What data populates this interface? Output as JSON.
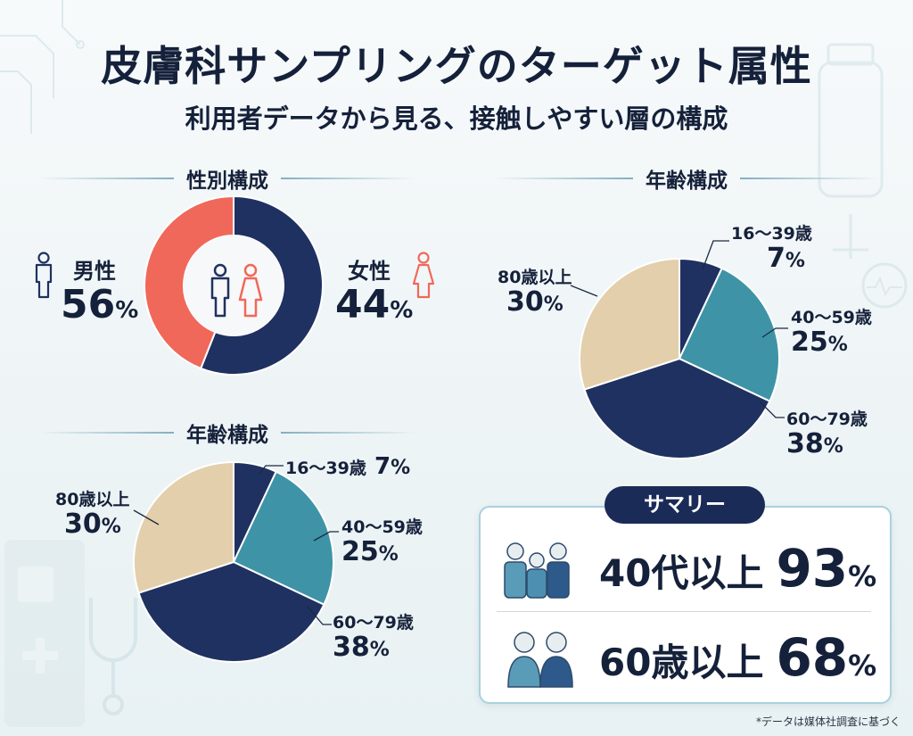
{
  "title": "皮膚科サンプリングのターゲット属性",
  "subtitle": "利用者データから見る、接触しやすい層の構成",
  "colors": {
    "navy": "#1f3160",
    "coral": "#f0685a",
    "teal": "#3e94a6",
    "beige": "#e3cfab",
    "dark_navy": "#1a2b57",
    "light_blue": "#4e93b0"
  },
  "gender_section": {
    "heading": "性別構成",
    "male_label": "男性",
    "male_percent": "56",
    "female_label": "女性",
    "female_percent": "44",
    "percent_sign": "%",
    "male_icon": "male-person-icon",
    "female_icon": "female-person-icon"
  },
  "age_section_right": {
    "heading": "年齢構成",
    "labels": [
      {
        "name": "16〜39歳",
        "pct": "7"
      },
      {
        "name": "40〜59歳",
        "pct": "25"
      },
      {
        "name": "60〜79歳",
        "pct": "38"
      },
      {
        "name": "80歳以上",
        "pct": "30"
      }
    ]
  },
  "age_section_left": {
    "heading": "年齢構成",
    "labels": [
      {
        "name": "16〜39歳",
        "pct": "7"
      },
      {
        "name": "40〜59歳",
        "pct": "25"
      },
      {
        "name": "60〜79歳",
        "pct": "38"
      },
      {
        "name": "80歳以上",
        "pct": "30"
      }
    ]
  },
  "summary": {
    "title": "サマリー",
    "rows": [
      {
        "text": "40代以上",
        "value": "93",
        "unit": "%",
        "icon": "group-of-people-icon"
      },
      {
        "text": "60歳以上",
        "value": "68",
        "unit": "%",
        "icon": "senior-couple-icon"
      }
    ]
  },
  "footnote": "*データは媒体社調査に基づく",
  "chart_data": [
    {
      "type": "pie",
      "variant": "donut",
      "heading": "性別構成",
      "categories": [
        "男性",
        "女性"
      ],
      "values": [
        56,
        44
      ],
      "colors": [
        "#1f3160",
        "#f0685a"
      ]
    },
    {
      "type": "pie",
      "heading": "年齢構成",
      "categories": [
        "16〜39歳",
        "40〜59歳",
        "60〜79歳",
        "80歳以上"
      ],
      "values": [
        7,
        25,
        38,
        30
      ],
      "colors": [
        "#1f3160",
        "#3e94a6",
        "#1f3160",
        "#e3cfab"
      ]
    },
    {
      "type": "pie",
      "heading": "年齢構成",
      "categories": [
        "16〜39歳",
        "40〜59歳",
        "60〜79歳",
        "80歳以上"
      ],
      "values": [
        7,
        25,
        38,
        30
      ],
      "colors": [
        "#1f3160",
        "#3e94a6",
        "#1f3160",
        "#e3cfab"
      ]
    }
  ]
}
